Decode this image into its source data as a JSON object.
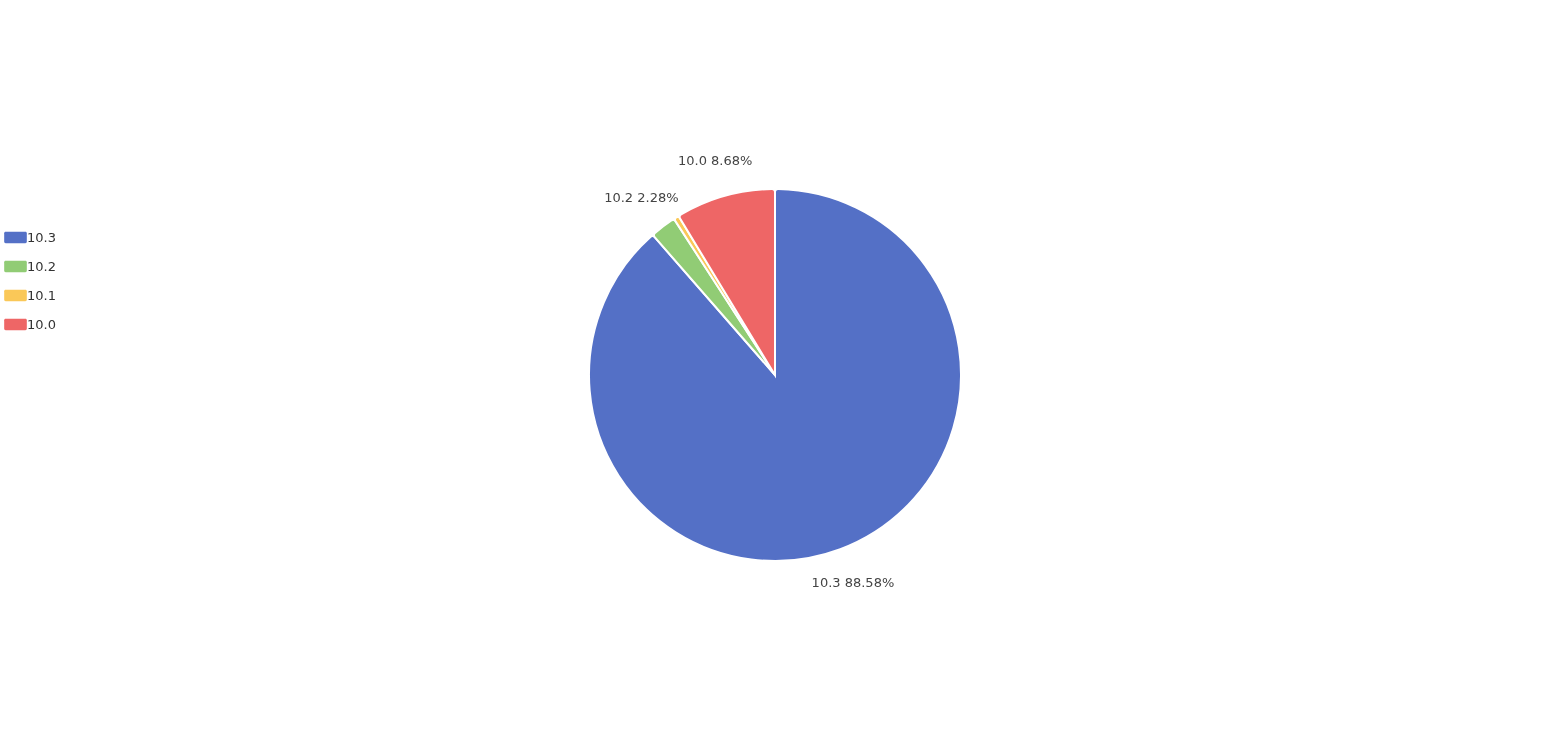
{
  "chart_data": {
    "type": "pie",
    "categories": [
      "10.3",
      "10.2",
      "10.1",
      "10.0"
    ],
    "values": [
      88.58,
      2.28,
      0.46,
      8.68
    ],
    "colors": [
      "#5470c6",
      "#91cc75",
      "#fac858",
      "#ee6666"
    ],
    "value_labels": [
      "10.3 88.58%",
      "10.2 2.28%",
      null,
      "10.0 8.68%"
    ],
    "legend": "left"
  }
}
